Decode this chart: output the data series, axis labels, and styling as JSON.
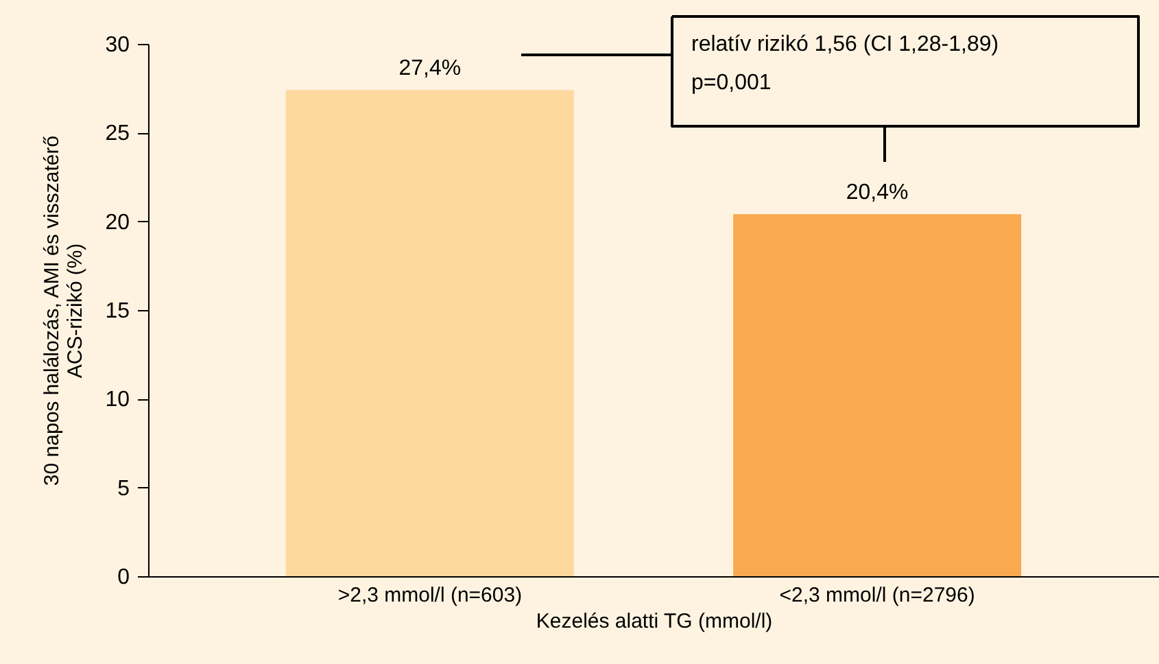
{
  "chart_data": {
    "type": "bar",
    "categories": [
      ">2,3 mmol/l (n=603)",
      "<2,3 mmol/l (n=2796)"
    ],
    "values": [
      27.4,
      20.4
    ],
    "colors": [
      "#fdd9a0",
      "#f9aa50"
    ],
    "value_labels": [
      "27,4%",
      "20,4%"
    ],
    "xlabel": "Kezelés alatti TG (mmol/l)",
    "ylabel": "30 napos halálozás, AMI és visszatérő ACS-rizikó (%)",
    "ylim": [
      0,
      30
    ],
    "yticks": [
      0,
      5,
      10,
      15,
      20,
      25,
      30
    ],
    "annotations": [
      "relatív rizikó 1,56 (CI 1,28-1,89)",
      "p=0,001"
    ],
    "grid": false
  }
}
